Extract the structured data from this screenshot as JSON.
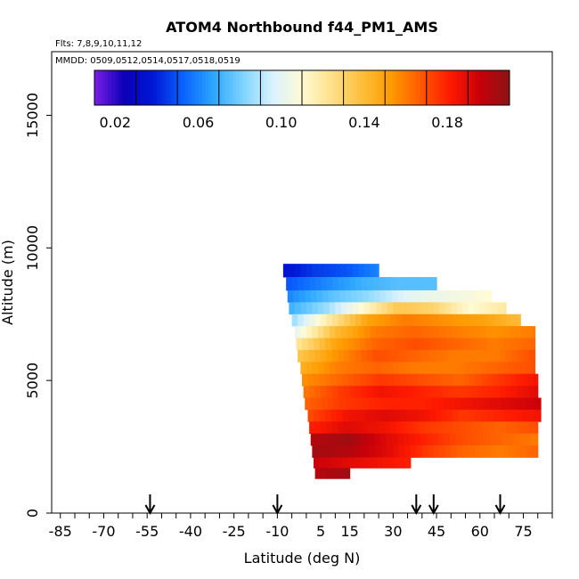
{
  "chart_data": {
    "type": "heatmap",
    "title": "ATOM4 Northbound f44_PM1_AMS",
    "flights_text": "Flts: 7,8,9,10,11,12",
    "dates_text": "MMDD: 0509,0512,0514,0517,0518,0519",
    "xlabel": "Latitude (deg N)",
    "ylabel": "Altitude (m)",
    "xlim": [
      -88,
      85
    ],
    "ylim": [
      0,
      17400
    ],
    "x_ticks_labeled": [
      -85,
      -70,
      -55,
      -40,
      -25,
      -10,
      5,
      15,
      30,
      45,
      60,
      75
    ],
    "x_ticks_minor": [
      -80,
      -75,
      -65,
      -60,
      -50,
      -45,
      -35,
      -30,
      -20,
      -15,
      -5,
      0,
      10,
      20,
      25,
      35,
      40,
      50,
      55,
      65,
      70,
      80,
      85
    ],
    "y_ticks": [
      0,
      5000,
      10000,
      15000
    ],
    "colorbar": {
      "min": 0.01,
      "max": 0.21,
      "tick_values": [
        0.02,
        0.06,
        0.1,
        0.14,
        0.18
      ],
      "tick_labels": [
        "0.02",
        "0.06",
        "0.10",
        "0.14",
        "0.18"
      ],
      "divisions": [
        0.03,
        0.05,
        0.07,
        0.09,
        0.11,
        0.13,
        0.15,
        0.17,
        0.19
      ],
      "colors": [
        "#7a1fe6",
        "#0b00b8",
        "#0018d6",
        "#0a63ff",
        "#2ba6ff",
        "#7dd3ff",
        "#d9f2ff",
        "#fffbd4",
        "#ffe08a",
        "#ffbf3d",
        "#ff9b00",
        "#ff5a00",
        "#ff1a00",
        "#c8000a",
        "#8a1414"
      ]
    },
    "arrows_latitude": [
      -54,
      -10,
      38,
      44,
      67
    ],
    "bands": [
      {
        "alt_bottom": 8900,
        "alt_top": 9400,
        "lat_start": -8,
        "lat_end": 25,
        "values": [
          0.035,
          0.045,
          0.05,
          0.06
        ]
      },
      {
        "alt_bottom": 8400,
        "alt_top": 8900,
        "lat_start": -7,
        "lat_end": 45,
        "values": [
          0.05,
          0.06,
          0.07,
          0.075,
          0.075
        ]
      },
      {
        "alt_bottom": 7950,
        "alt_top": 8400,
        "lat_start": -6.5,
        "lat_end": 64,
        "values": [
          0.06,
          0.075,
          0.085,
          0.1,
          0.105,
          0.11
        ]
      },
      {
        "alt_bottom": 7500,
        "alt_top": 7950,
        "lat_start": -6,
        "lat_end": 69,
        "values": [
          0.07,
          0.085,
          0.11,
          0.135,
          0.13,
          0.11,
          0.12
        ]
      },
      {
        "alt_bottom": 7050,
        "alt_top": 7500,
        "lat_start": -5,
        "lat_end": 74,
        "values": [
          0.085,
          0.12,
          0.15,
          0.16,
          0.155,
          0.15,
          0.14
        ]
      },
      {
        "alt_bottom": 6600,
        "alt_top": 7050,
        "lat_start": -4,
        "lat_end": 79,
        "values": [
          0.1,
          0.14,
          0.16,
          0.165,
          0.16,
          0.155,
          0.16
        ]
      },
      {
        "alt_bottom": 6150,
        "alt_top": 6600,
        "lat_start": -3.5,
        "lat_end": 79,
        "values": [
          0.12,
          0.15,
          0.165,
          0.17,
          0.165,
          0.16,
          0.165
        ]
      },
      {
        "alt_bottom": 5700,
        "alt_top": 6150,
        "lat_start": -3,
        "lat_end": 79,
        "values": [
          0.135,
          0.155,
          0.17,
          0.165,
          0.16,
          0.16,
          0.17
        ]
      },
      {
        "alt_bottom": 5250,
        "alt_top": 5700,
        "lat_start": -2,
        "lat_end": 79,
        "values": [
          0.145,
          0.16,
          0.165,
          0.16,
          0.16,
          0.165,
          0.17
        ]
      },
      {
        "alt_bottom": 4800,
        "alt_top": 5250,
        "lat_start": -1.5,
        "lat_end": 80,
        "values": [
          0.155,
          0.165,
          0.175,
          0.17,
          0.165,
          0.175,
          0.185
        ]
      },
      {
        "alt_bottom": 4350,
        "alt_top": 4800,
        "lat_start": -1,
        "lat_end": 80,
        "values": [
          0.16,
          0.175,
          0.185,
          0.18,
          0.175,
          0.18,
          0.19
        ]
      },
      {
        "alt_bottom": 3900,
        "alt_top": 4350,
        "lat_start": -0.5,
        "lat_end": 81,
        "values": [
          0.165,
          0.175,
          0.18,
          0.18,
          0.185,
          0.19,
          0.195
        ]
      },
      {
        "alt_bottom": 3450,
        "alt_top": 3900,
        "lat_start": 0.5,
        "lat_end": 81,
        "values": [
          0.17,
          0.185,
          0.19,
          0.185,
          0.175,
          0.18,
          0.185
        ]
      },
      {
        "alt_bottom": 3000,
        "alt_top": 3450,
        "lat_start": 1,
        "lat_end": 80,
        "values": [
          0.18,
          0.19,
          0.185,
          0.175,
          0.17,
          0.165,
          0.17
        ]
      },
      {
        "alt_bottom": 2550,
        "alt_top": 3000,
        "lat_start": 1.5,
        "lat_end": 80,
        "values": [
          0.2,
          0.205,
          0.19,
          0.18,
          0.17,
          0.165,
          0.16
        ]
      },
      {
        "alt_bottom": 2100,
        "alt_top": 2550,
        "lat_start": 2,
        "lat_end": 80,
        "values": [
          0.205,
          0.2,
          0.19,
          0.175,
          0.165,
          0.16,
          0.165
        ]
      },
      {
        "alt_bottom": 1700,
        "alt_top": 2100,
        "lat_start": 2.5,
        "lat_end": 36,
        "values": [
          0.195,
          0.19,
          0.185,
          0.18
        ]
      },
      {
        "alt_bottom": 1300,
        "alt_top": 1700,
        "lat_start": 3,
        "lat_end": 15,
        "values": [
          0.2,
          0.205
        ]
      }
    ]
  }
}
